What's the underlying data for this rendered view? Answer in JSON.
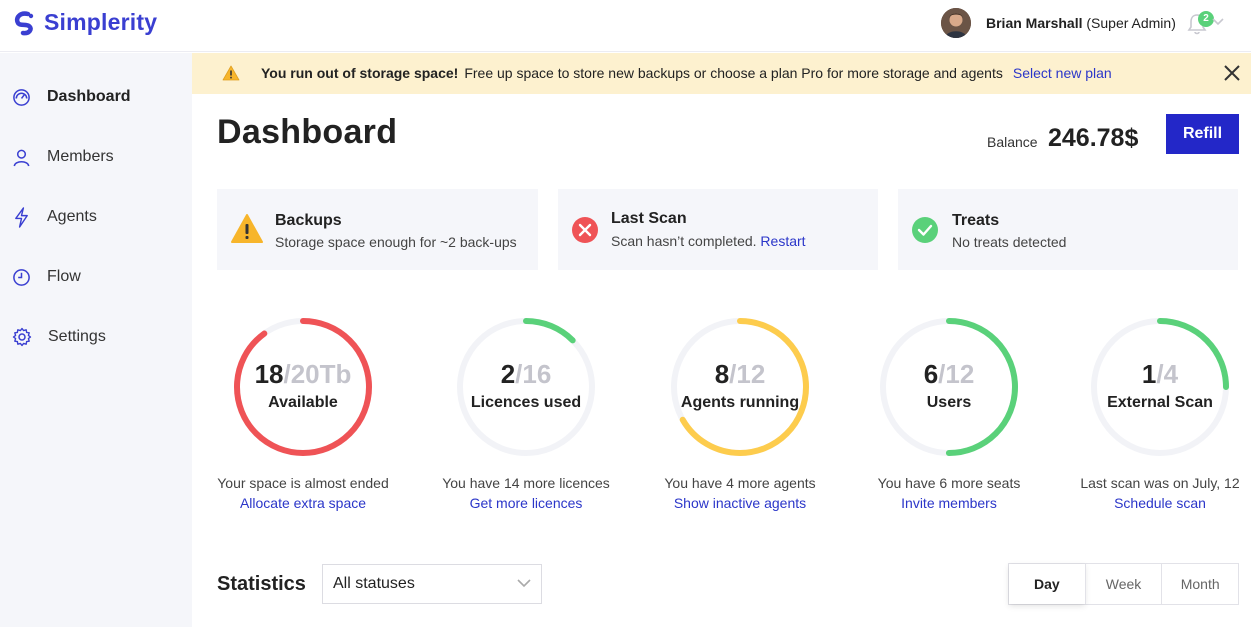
{
  "app": {
    "name": "Simplerity"
  },
  "user": {
    "name": "Brian Marshall",
    "role": "(Super Admin)",
    "notifications": "2"
  },
  "sidebar": {
    "items": [
      {
        "label": "Dashboard",
        "active": true
      },
      {
        "label": "Members"
      },
      {
        "label": "Agents"
      },
      {
        "label": "Flow"
      },
      {
        "label": "Settings"
      }
    ]
  },
  "alert": {
    "title": "You run out of storage space!",
    "message": "Free up space to store new backups or choose a plan Pro for more storage and agents",
    "link": "Select new plan"
  },
  "page": {
    "title": "Dashboard"
  },
  "balance": {
    "label": "Balance",
    "value": "246.78$",
    "button": "Refill"
  },
  "status_cards": [
    {
      "title": "Backups",
      "subtitle": "Storage space enough for ~2 back-ups",
      "link": ""
    },
    {
      "title": "Last Scan",
      "subtitle": "Scan hasn’t completed.",
      "link": "Restart"
    },
    {
      "title": "Treats",
      "subtitle": "No treats detected",
      "link": ""
    }
  ],
  "metrics": [
    {
      "value": "18",
      "total": "/20Tb",
      "label": "Available",
      "fraction": 0.9,
      "color": "#ef5356",
      "desc": "Your space is almost ended",
      "link": "Allocate extra space"
    },
    {
      "value": "2",
      "total": "/16",
      "label": "Licences used",
      "fraction": 0.125,
      "color": "#5ad17a",
      "desc": "You have 14 more licences",
      "link": "Get more licences"
    },
    {
      "value": "8",
      "total": "/12",
      "label": "Agents running",
      "fraction": 0.667,
      "color": "#fdcc4d",
      "desc": "You have 4 more agents",
      "link": "Show inactive agents"
    },
    {
      "value": "6",
      "total": "/12",
      "label": "Users",
      "fraction": 0.5,
      "color": "#5ad17a",
      "desc": "You have 6 more seats",
      "link": "Invite members"
    },
    {
      "value": "1",
      "total": "/4",
      "label": "External Scan",
      "fraction": 0.25,
      "color": "#5ad17a",
      "desc": "Last scan was on July, 12",
      "link": "Schedule scan"
    }
  ],
  "statistics": {
    "title": "Statistics",
    "filter": "All statuses",
    "periods": [
      "Day",
      "Week",
      "Month"
    ],
    "selected_period": "Day"
  }
}
